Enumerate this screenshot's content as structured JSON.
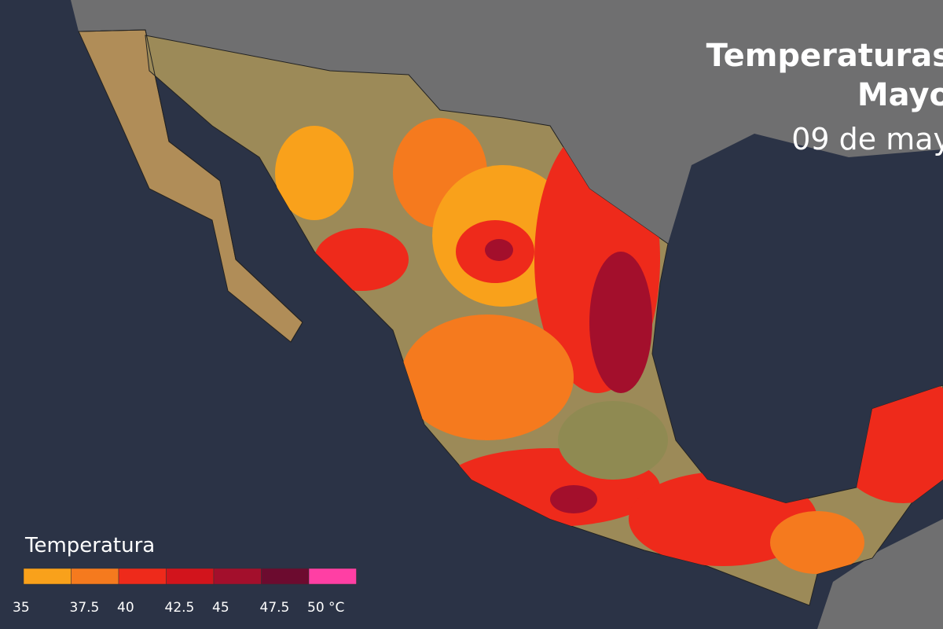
{
  "header": {
    "title_lines": [
      "Temperaturas",
      "Mayo"
    ],
    "date": "09 de may"
  },
  "legend": {
    "title": "Temperatura",
    "items": [
      {
        "color": "#f9a11b",
        "label": "35"
      },
      {
        "color": "#f57a1e",
        "label": "37.5"
      },
      {
        "color": "#ee2a1b",
        "label": "40"
      },
      {
        "color": "#d2141c",
        "label": "42.5"
      },
      {
        "color": "#a30f2c",
        "label": "45"
      },
      {
        "color": "#6c0b2f",
        "label": "47.5"
      },
      {
        "color": "#ff3fa4",
        "label": "50 °C"
      }
    ]
  }
}
